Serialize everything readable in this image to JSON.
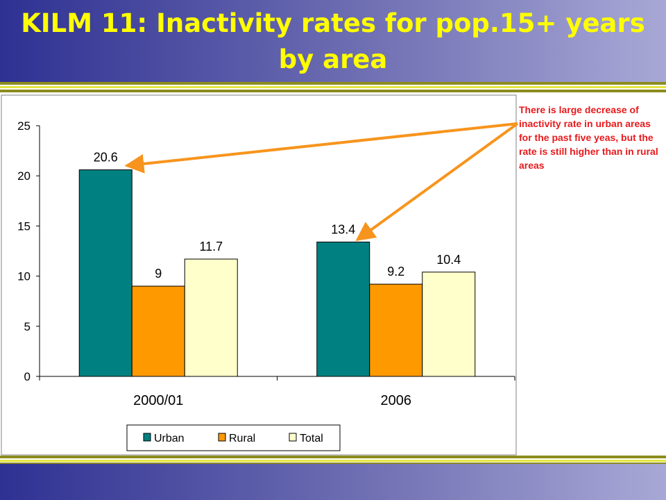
{
  "slide": {
    "title": "KILM 11: Inactivity rates for pop.15+ years by area",
    "note": "There is large decrease of  inactivity rate in urban areas for the past five yeas, but the rate is still higher than in rural areas"
  },
  "chart_data": {
    "type": "bar",
    "categories": [
      "2000/01",
      "2006"
    ],
    "series": [
      {
        "name": "Urban",
        "values": [
          20.6,
          13.4
        ],
        "color": "#008080"
      },
      {
        "name": "Rural",
        "values": [
          9,
          9.2
        ],
        "color": "#ff9900"
      },
      {
        "name": "Total",
        "values": [
          11.7,
          10.4
        ],
        "color": "#ffffcc"
      }
    ],
    "ylim": [
      0,
      25
    ],
    "yticks": [
      0,
      5,
      10,
      15,
      20,
      25
    ],
    "legend": "bottom",
    "grid": false,
    "annotation_color": "#f7941d"
  }
}
